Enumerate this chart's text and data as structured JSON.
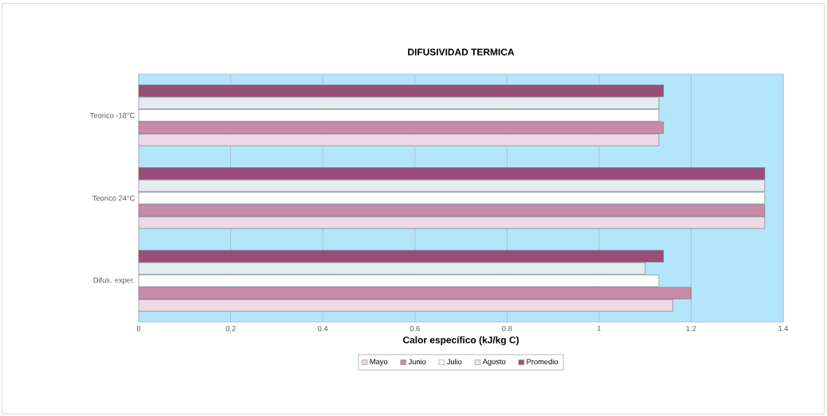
{
  "chart_data": {
    "type": "bar",
    "orientation": "horizontal",
    "title": "DIFUSIVIDAD TERMICA",
    "xlabel": "Calor específico (kJ/kg C)",
    "categories": [
      "Teorico -18°C",
      "Teorico 24°C",
      "Difus. exper."
    ],
    "series": [
      {
        "name": "Mayo",
        "color": "#ecd9e5",
        "values": [
          1.13,
          1.36,
          1.16
        ]
      },
      {
        "name": "Junio",
        "color": "#c98aa8",
        "values": [
          1.14,
          1.36,
          1.2
        ]
      },
      {
        "name": "Julio",
        "color": "#ffffff",
        "values": [
          1.13,
          1.36,
          1.13
        ]
      },
      {
        "name": "Agosto",
        "color": "#e4ecf0",
        "values": [
          1.13,
          1.36,
          1.1
        ]
      },
      {
        "name": "Promedio",
        "color": "#9b4d7a",
        "values": [
          1.14,
          1.36,
          1.14
        ]
      }
    ],
    "xlim": [
      0,
      1.4
    ],
    "xticks": [
      0,
      0.2,
      0.4,
      0.6,
      0.8,
      1,
      1.2,
      1.4
    ],
    "grid": "x",
    "legend": "bottom"
  }
}
